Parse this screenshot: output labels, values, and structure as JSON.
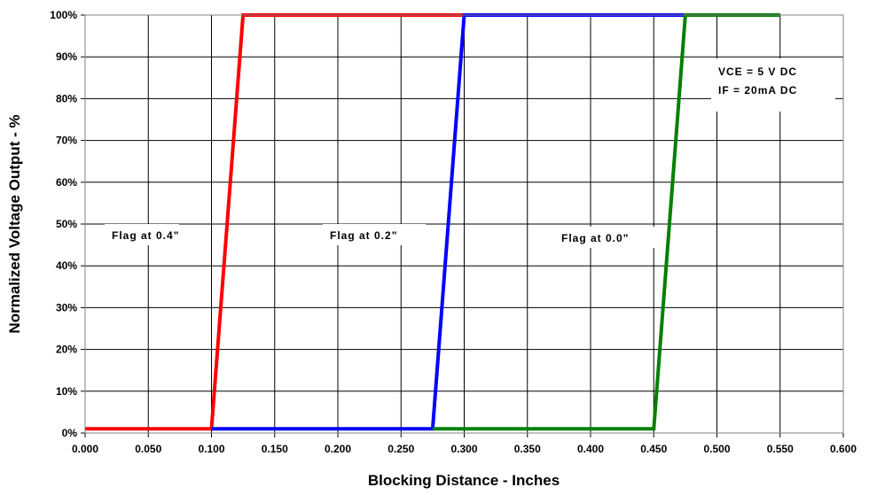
{
  "chart_data": {
    "type": "line",
    "title": "",
    "xlabel": "Blocking Distance - Inches",
    "ylabel": "Normalized Voltage Output - %",
    "xlim": [
      0.0,
      0.6
    ],
    "ylim": [
      0,
      100
    ],
    "grid": true,
    "x_tick_labels": [
      "0.000",
      "0.050",
      "0.100",
      "0.150",
      "0.200",
      "0.250",
      "0.300",
      "0.350",
      "0.400",
      "0.450",
      "0.500",
      "0.550",
      "0.600"
    ],
    "y_tick_labels": [
      "0%",
      "10%",
      "20%",
      "30%",
      "40%",
      "50%",
      "60%",
      "70%",
      "80%",
      "90%",
      "100%"
    ],
    "series": [
      {
        "name": "Flag at 0.4\"",
        "color": "#ff0000",
        "x": [
          0.0,
          0.1,
          0.125,
          0.55
        ],
        "y": [
          1,
          1,
          100,
          100
        ]
      },
      {
        "name": "Flag at 0.2\"",
        "color": "#0000ff",
        "x": [
          0.1,
          0.275,
          0.3,
          0.55
        ],
        "y": [
          1,
          1,
          100,
          100
        ]
      },
      {
        "name": "Flag at 0.0\"",
        "color": "#008000",
        "x": [
          0.275,
          0.45,
          0.475,
          0.55
        ],
        "y": [
          1,
          1,
          100,
          100
        ]
      }
    ],
    "annotations": {
      "conditions_line1": "VCE = 5 V DC",
      "conditions_line2": "IF = 20mA DC"
    }
  }
}
